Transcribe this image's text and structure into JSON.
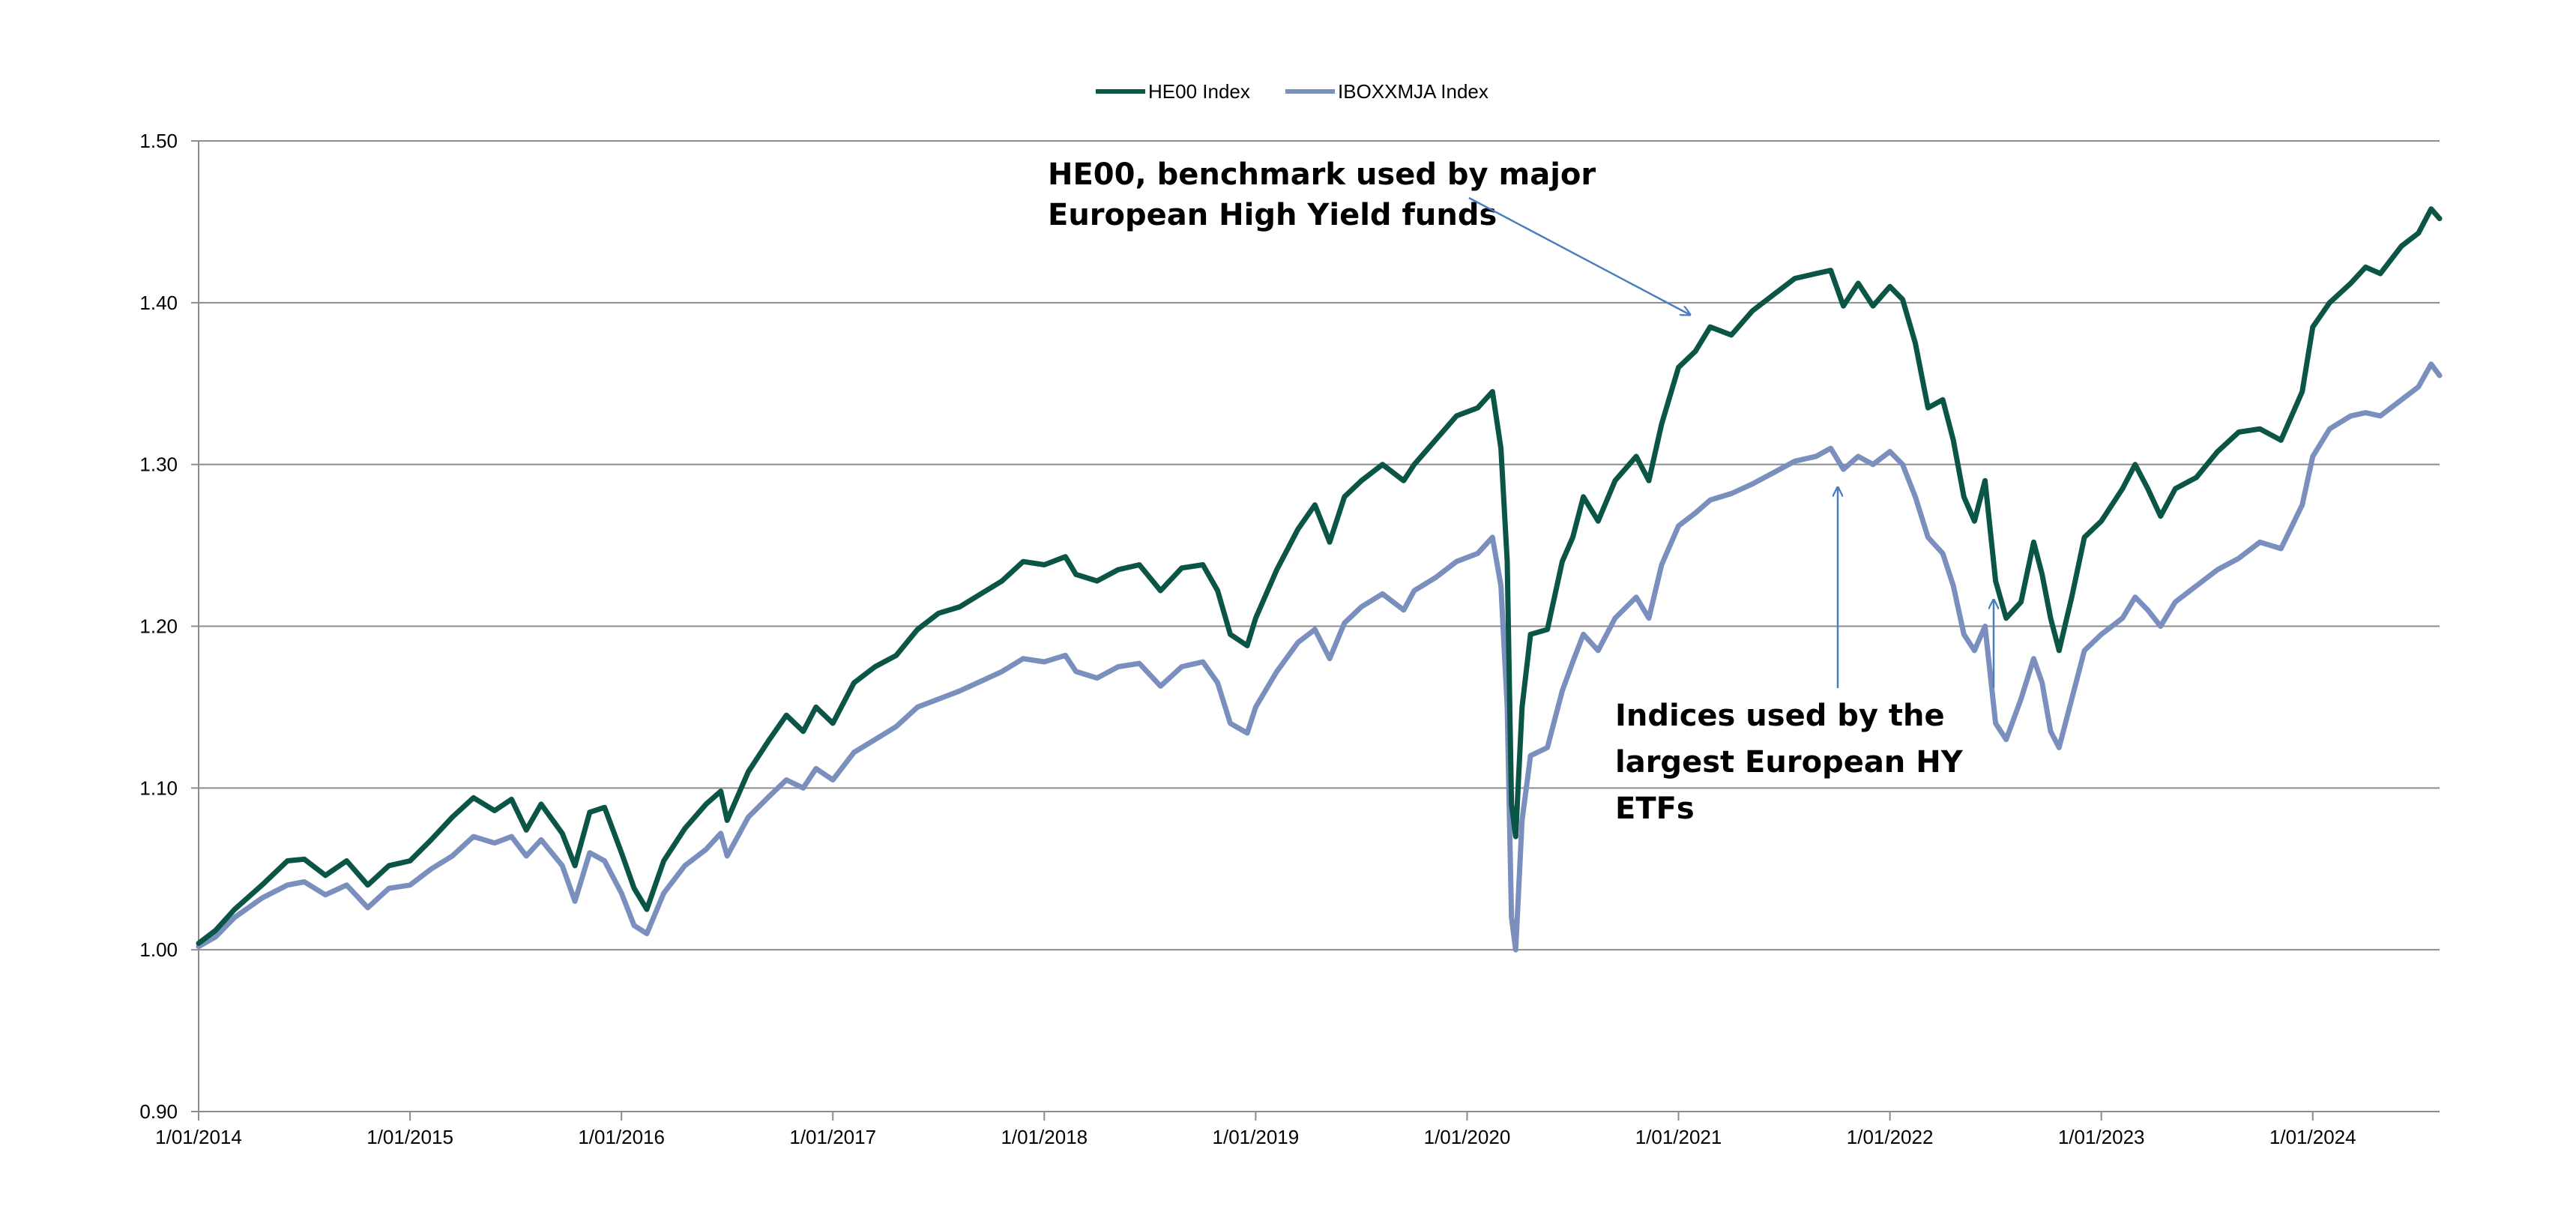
{
  "chart_data": {
    "type": "line",
    "title": "",
    "xlabel": "",
    "ylabel": "",
    "ylim": [
      0.9,
      1.5
    ],
    "xlim": [
      2014.0,
      2024.6
    ],
    "y_ticks": [
      0.9,
      1.0,
      1.1,
      1.2,
      1.3,
      1.4,
      1.5
    ],
    "y_tick_labels": [
      "0.90",
      "1.00",
      "1.10",
      "1.20",
      "1.30",
      "1.40",
      "1.50"
    ],
    "x_ticks": [
      2014,
      2015,
      2016,
      2017,
      2018,
      2019,
      2020,
      2021,
      2022,
      2023,
      2024
    ],
    "x_tick_labels": [
      "1/01/2014",
      "1/01/2015",
      "1/01/2016",
      "1/01/2017",
      "1/01/2018",
      "1/01/2019",
      "1/01/2020",
      "1/01/2021",
      "1/01/2022",
      "1/01/2023",
      "1/01/2024"
    ],
    "grid": true,
    "legend_position": "top-center",
    "series": [
      {
        "name": "HE00 Index",
        "color": "#0a5546",
        "points": [
          [
            2014.0,
            1.004
          ],
          [
            2014.08,
            1.012
          ],
          [
            2014.17,
            1.025
          ],
          [
            2014.3,
            1.04
          ],
          [
            2014.42,
            1.055
          ],
          [
            2014.5,
            1.056
          ],
          [
            2014.6,
            1.046
          ],
          [
            2014.7,
            1.055
          ],
          [
            2014.8,
            1.04
          ],
          [
            2014.9,
            1.052
          ],
          [
            2015.0,
            1.055
          ],
          [
            2015.1,
            1.068
          ],
          [
            2015.2,
            1.082
          ],
          [
            2015.3,
            1.094
          ],
          [
            2015.4,
            1.086
          ],
          [
            2015.48,
            1.093
          ],
          [
            2015.55,
            1.074
          ],
          [
            2015.62,
            1.09
          ],
          [
            2015.72,
            1.072
          ],
          [
            2015.78,
            1.052
          ],
          [
            2015.85,
            1.085
          ],
          [
            2015.92,
            1.088
          ],
          [
            2016.0,
            1.06
          ],
          [
            2016.06,
            1.038
          ],
          [
            2016.12,
            1.025
          ],
          [
            2016.2,
            1.055
          ],
          [
            2016.3,
            1.075
          ],
          [
            2016.4,
            1.09
          ],
          [
            2016.47,
            1.098
          ],
          [
            2016.5,
            1.08
          ],
          [
            2016.6,
            1.11
          ],
          [
            2016.7,
            1.13
          ],
          [
            2016.78,
            1.145
          ],
          [
            2016.86,
            1.135
          ],
          [
            2016.92,
            1.15
          ],
          [
            2017.0,
            1.14
          ],
          [
            2017.1,
            1.165
          ],
          [
            2017.2,
            1.175
          ],
          [
            2017.3,
            1.182
          ],
          [
            2017.4,
            1.198
          ],
          [
            2017.5,
            1.208
          ],
          [
            2017.6,
            1.212
          ],
          [
            2017.7,
            1.22
          ],
          [
            2017.8,
            1.228
          ],
          [
            2017.9,
            1.24
          ],
          [
            2018.0,
            1.238
          ],
          [
            2018.1,
            1.243
          ],
          [
            2018.15,
            1.232
          ],
          [
            2018.25,
            1.228
          ],
          [
            2018.35,
            1.235
          ],
          [
            2018.45,
            1.238
          ],
          [
            2018.55,
            1.222
          ],
          [
            2018.65,
            1.236
          ],
          [
            2018.75,
            1.238
          ],
          [
            2018.82,
            1.222
          ],
          [
            2018.88,
            1.195
          ],
          [
            2018.96,
            1.188
          ],
          [
            2019.0,
            1.205
          ],
          [
            2019.1,
            1.235
          ],
          [
            2019.2,
            1.26
          ],
          [
            2019.28,
            1.275
          ],
          [
            2019.35,
            1.252
          ],
          [
            2019.42,
            1.28
          ],
          [
            2019.5,
            1.29
          ],
          [
            2019.6,
            1.3
          ],
          [
            2019.7,
            1.29
          ],
          [
            2019.75,
            1.3
          ],
          [
            2019.85,
            1.315
          ],
          [
            2019.95,
            1.33
          ],
          [
            2020.05,
            1.335
          ],
          [
            2020.12,
            1.345
          ],
          [
            2020.16,
            1.31
          ],
          [
            2020.19,
            1.24
          ],
          [
            2020.21,
            1.09
          ],
          [
            2020.23,
            1.07
          ],
          [
            2020.26,
            1.15
          ],
          [
            2020.3,
            1.195
          ],
          [
            2020.38,
            1.198
          ],
          [
            2020.45,
            1.24
          ],
          [
            2020.5,
            1.255
          ],
          [
            2020.55,
            1.28
          ],
          [
            2020.62,
            1.265
          ],
          [
            2020.7,
            1.29
          ],
          [
            2020.8,
            1.305
          ],
          [
            2020.86,
            1.29
          ],
          [
            2020.92,
            1.325
          ],
          [
            2021.0,
            1.36
          ],
          [
            2021.08,
            1.37
          ],
          [
            2021.15,
            1.385
          ],
          [
            2021.25,
            1.38
          ],
          [
            2021.35,
            1.395
          ],
          [
            2021.45,
            1.405
          ],
          [
            2021.55,
            1.415
          ],
          [
            2021.65,
            1.418
          ],
          [
            2021.72,
            1.42
          ],
          [
            2021.78,
            1.398
          ],
          [
            2021.85,
            1.412
          ],
          [
            2021.92,
            1.398
          ],
          [
            2022.0,
            1.41
          ],
          [
            2022.06,
            1.402
          ],
          [
            2022.12,
            1.375
          ],
          [
            2022.18,
            1.335
          ],
          [
            2022.25,
            1.34
          ],
          [
            2022.3,
            1.315
          ],
          [
            2022.35,
            1.28
          ],
          [
            2022.4,
            1.265
          ],
          [
            2022.45,
            1.29
          ],
          [
            2022.5,
            1.228
          ],
          [
            2022.55,
            1.205
          ],
          [
            2022.62,
            1.215
          ],
          [
            2022.68,
            1.252
          ],
          [
            2022.72,
            1.232
          ],
          [
            2022.76,
            1.205
          ],
          [
            2022.8,
            1.185
          ],
          [
            2022.86,
            1.218
          ],
          [
            2022.92,
            1.255
          ],
          [
            2023.0,
            1.265
          ],
          [
            2023.1,
            1.285
          ],
          [
            2023.16,
            1.3
          ],
          [
            2023.22,
            1.285
          ],
          [
            2023.28,
            1.268
          ],
          [
            2023.35,
            1.285
          ],
          [
            2023.45,
            1.292
          ],
          [
            2023.55,
            1.308
          ],
          [
            2023.65,
            1.32
          ],
          [
            2023.75,
            1.322
          ],
          [
            2023.85,
            1.315
          ],
          [
            2023.95,
            1.345
          ],
          [
            2024.0,
            1.385
          ],
          [
            2024.08,
            1.4
          ],
          [
            2024.18,
            1.412
          ],
          [
            2024.25,
            1.422
          ],
          [
            2024.32,
            1.418
          ],
          [
            2024.42,
            1.435
          ],
          [
            2024.5,
            1.443
          ],
          [
            2024.56,
            1.458
          ],
          [
            2024.6,
            1.452
          ]
        ]
      },
      {
        "name": "IBOXXMJA Index",
        "color": "#7a8fbd",
        "points": [
          [
            2014.0,
            1.002
          ],
          [
            2014.08,
            1.008
          ],
          [
            2014.17,
            1.02
          ],
          [
            2014.3,
            1.032
          ],
          [
            2014.42,
            1.04
          ],
          [
            2014.5,
            1.042
          ],
          [
            2014.6,
            1.034
          ],
          [
            2014.7,
            1.04
          ],
          [
            2014.8,
            1.026
          ],
          [
            2014.9,
            1.038
          ],
          [
            2015.0,
            1.04
          ],
          [
            2015.1,
            1.05
          ],
          [
            2015.2,
            1.058
          ],
          [
            2015.3,
            1.07
          ],
          [
            2015.4,
            1.066
          ],
          [
            2015.48,
            1.07
          ],
          [
            2015.55,
            1.058
          ],
          [
            2015.62,
            1.068
          ],
          [
            2015.72,
            1.052
          ],
          [
            2015.78,
            1.03
          ],
          [
            2015.85,
            1.06
          ],
          [
            2015.92,
            1.055
          ],
          [
            2016.0,
            1.035
          ],
          [
            2016.06,
            1.015
          ],
          [
            2016.12,
            1.01
          ],
          [
            2016.2,
            1.035
          ],
          [
            2016.3,
            1.052
          ],
          [
            2016.4,
            1.062
          ],
          [
            2016.47,
            1.072
          ],
          [
            2016.5,
            1.058
          ],
          [
            2016.6,
            1.082
          ],
          [
            2016.7,
            1.095
          ],
          [
            2016.78,
            1.105
          ],
          [
            2016.86,
            1.1
          ],
          [
            2016.92,
            1.112
          ],
          [
            2017.0,
            1.105
          ],
          [
            2017.1,
            1.122
          ],
          [
            2017.2,
            1.13
          ],
          [
            2017.3,
            1.138
          ],
          [
            2017.4,
            1.15
          ],
          [
            2017.5,
            1.155
          ],
          [
            2017.6,
            1.16
          ],
          [
            2017.7,
            1.166
          ],
          [
            2017.8,
            1.172
          ],
          [
            2017.9,
            1.18
          ],
          [
            2018.0,
            1.178
          ],
          [
            2018.1,
            1.182
          ],
          [
            2018.15,
            1.172
          ],
          [
            2018.25,
            1.168
          ],
          [
            2018.35,
            1.175
          ],
          [
            2018.45,
            1.177
          ],
          [
            2018.55,
            1.163
          ],
          [
            2018.65,
            1.175
          ],
          [
            2018.75,
            1.178
          ],
          [
            2018.82,
            1.165
          ],
          [
            2018.88,
            1.14
          ],
          [
            2018.96,
            1.134
          ],
          [
            2019.0,
            1.15
          ],
          [
            2019.1,
            1.172
          ],
          [
            2019.2,
            1.19
          ],
          [
            2019.28,
            1.198
          ],
          [
            2019.35,
            1.18
          ],
          [
            2019.42,
            1.202
          ],
          [
            2019.5,
            1.212
          ],
          [
            2019.6,
            1.22
          ],
          [
            2019.7,
            1.21
          ],
          [
            2019.75,
            1.222
          ],
          [
            2019.85,
            1.23
          ],
          [
            2019.95,
            1.24
          ],
          [
            2020.05,
            1.245
          ],
          [
            2020.12,
            1.255
          ],
          [
            2020.16,
            1.225
          ],
          [
            2020.19,
            1.15
          ],
          [
            2020.21,
            1.02
          ],
          [
            2020.23,
            1.0
          ],
          [
            2020.26,
            1.08
          ],
          [
            2020.3,
            1.12
          ],
          [
            2020.38,
            1.125
          ],
          [
            2020.45,
            1.16
          ],
          [
            2020.5,
            1.178
          ],
          [
            2020.55,
            1.195
          ],
          [
            2020.62,
            1.185
          ],
          [
            2020.7,
            1.205
          ],
          [
            2020.8,
            1.218
          ],
          [
            2020.86,
            1.205
          ],
          [
            2020.92,
            1.238
          ],
          [
            2021.0,
            1.262
          ],
          [
            2021.08,
            1.27
          ],
          [
            2021.15,
            1.278
          ],
          [
            2021.25,
            1.282
          ],
          [
            2021.35,
            1.288
          ],
          [
            2021.45,
            1.295
          ],
          [
            2021.55,
            1.302
          ],
          [
            2021.65,
            1.305
          ],
          [
            2021.72,
            1.31
          ],
          [
            2021.78,
            1.297
          ],
          [
            2021.85,
            1.305
          ],
          [
            2021.92,
            1.3
          ],
          [
            2022.0,
            1.308
          ],
          [
            2022.06,
            1.3
          ],
          [
            2022.12,
            1.28
          ],
          [
            2022.18,
            1.255
          ],
          [
            2022.25,
            1.245
          ],
          [
            2022.3,
            1.225
          ],
          [
            2022.35,
            1.195
          ],
          [
            2022.4,
            1.185
          ],
          [
            2022.45,
            1.2
          ],
          [
            2022.5,
            1.14
          ],
          [
            2022.55,
            1.13
          ],
          [
            2022.62,
            1.155
          ],
          [
            2022.68,
            1.18
          ],
          [
            2022.72,
            1.165
          ],
          [
            2022.76,
            1.135
          ],
          [
            2022.8,
            1.125
          ],
          [
            2022.86,
            1.155
          ],
          [
            2022.92,
            1.185
          ],
          [
            2023.0,
            1.195
          ],
          [
            2023.1,
            1.205
          ],
          [
            2023.16,
            1.218
          ],
          [
            2023.22,
            1.21
          ],
          [
            2023.28,
            1.2
          ],
          [
            2023.35,
            1.215
          ],
          [
            2023.45,
            1.225
          ],
          [
            2023.55,
            1.235
          ],
          [
            2023.65,
            1.242
          ],
          [
            2023.75,
            1.252
          ],
          [
            2023.85,
            1.248
          ],
          [
            2023.95,
            1.275
          ],
          [
            2024.0,
            1.305
          ],
          [
            2024.08,
            1.322
          ],
          [
            2024.18,
            1.33
          ],
          [
            2024.25,
            1.332
          ],
          [
            2024.32,
            1.33
          ],
          [
            2024.42,
            1.34
          ],
          [
            2024.5,
            1.348
          ],
          [
            2024.56,
            1.362
          ],
          [
            2024.6,
            1.355
          ]
        ]
      }
    ],
    "annotations": [
      {
        "lines": [
          "HE00, benchmark used by major",
          "European High Yield funds"
        ],
        "arrow_to": [
          2021.05,
          1.4
        ]
      },
      {
        "lines": [
          "Indices used by the",
          "largest European HY",
          "ETFs"
        ],
        "arrow_to": [
          2021.75,
          1.29
        ]
      }
    ]
  }
}
